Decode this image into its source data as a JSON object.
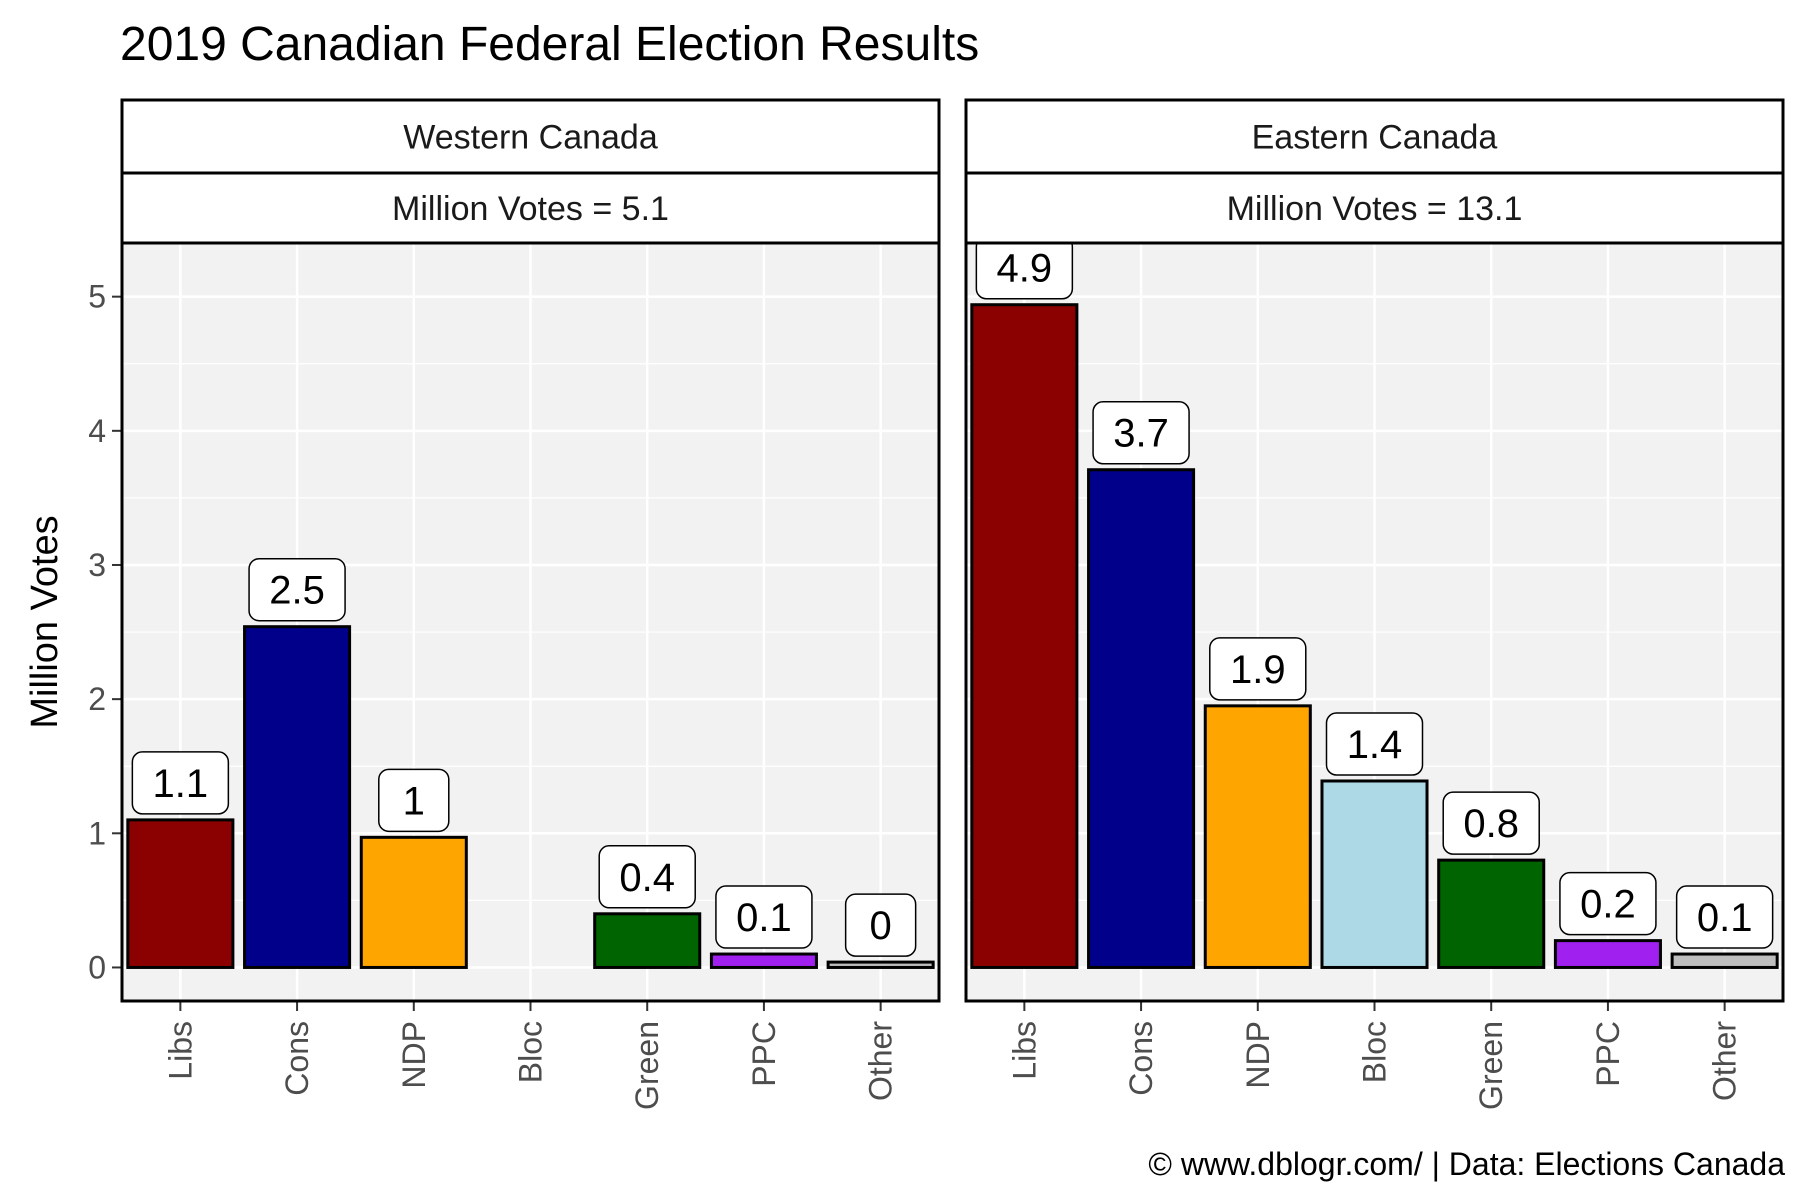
{
  "chart_data": {
    "type": "bar",
    "title": "2019 Canadian Federal Election Results",
    "ylabel": "Million Votes",
    "xlabel": "",
    "ylim": [
      -0.25,
      5.4
    ],
    "yticks": [
      0,
      1,
      2,
      3,
      4,
      5
    ],
    "grid": true,
    "legend": "none",
    "categories": [
      "Libs",
      "Cons",
      "NDP",
      "Bloc",
      "Green",
      "PPC",
      "Other"
    ],
    "colors": [
      "#8b0000",
      "#00008b",
      "#ffa500",
      "#add8e6",
      "#006400",
      "#a020f0",
      "#bebebe"
    ],
    "caption": "© www.dblogr.com/  |  Data: Elections Canada",
    "panels": [
      {
        "strip_top": "Western Canada",
        "strip_bottom": "Million Votes = 5.1",
        "values": [
          1.1,
          2.54,
          0.97,
          null,
          0.4,
          0.1,
          0.04
        ],
        "labels": [
          "1.1",
          "2.5",
          "1",
          "",
          "0.4",
          "0.1",
          "0"
        ]
      },
      {
        "strip_top": "Eastern Canada",
        "strip_bottom": "Million Votes = 13.1",
        "values": [
          4.94,
          3.71,
          1.95,
          1.39,
          0.8,
          0.2,
          0.1
        ],
        "labels": [
          "4.9",
          "3.7",
          "1.9",
          "1.4",
          "0.8",
          "0.2",
          "0.1"
        ]
      }
    ]
  }
}
